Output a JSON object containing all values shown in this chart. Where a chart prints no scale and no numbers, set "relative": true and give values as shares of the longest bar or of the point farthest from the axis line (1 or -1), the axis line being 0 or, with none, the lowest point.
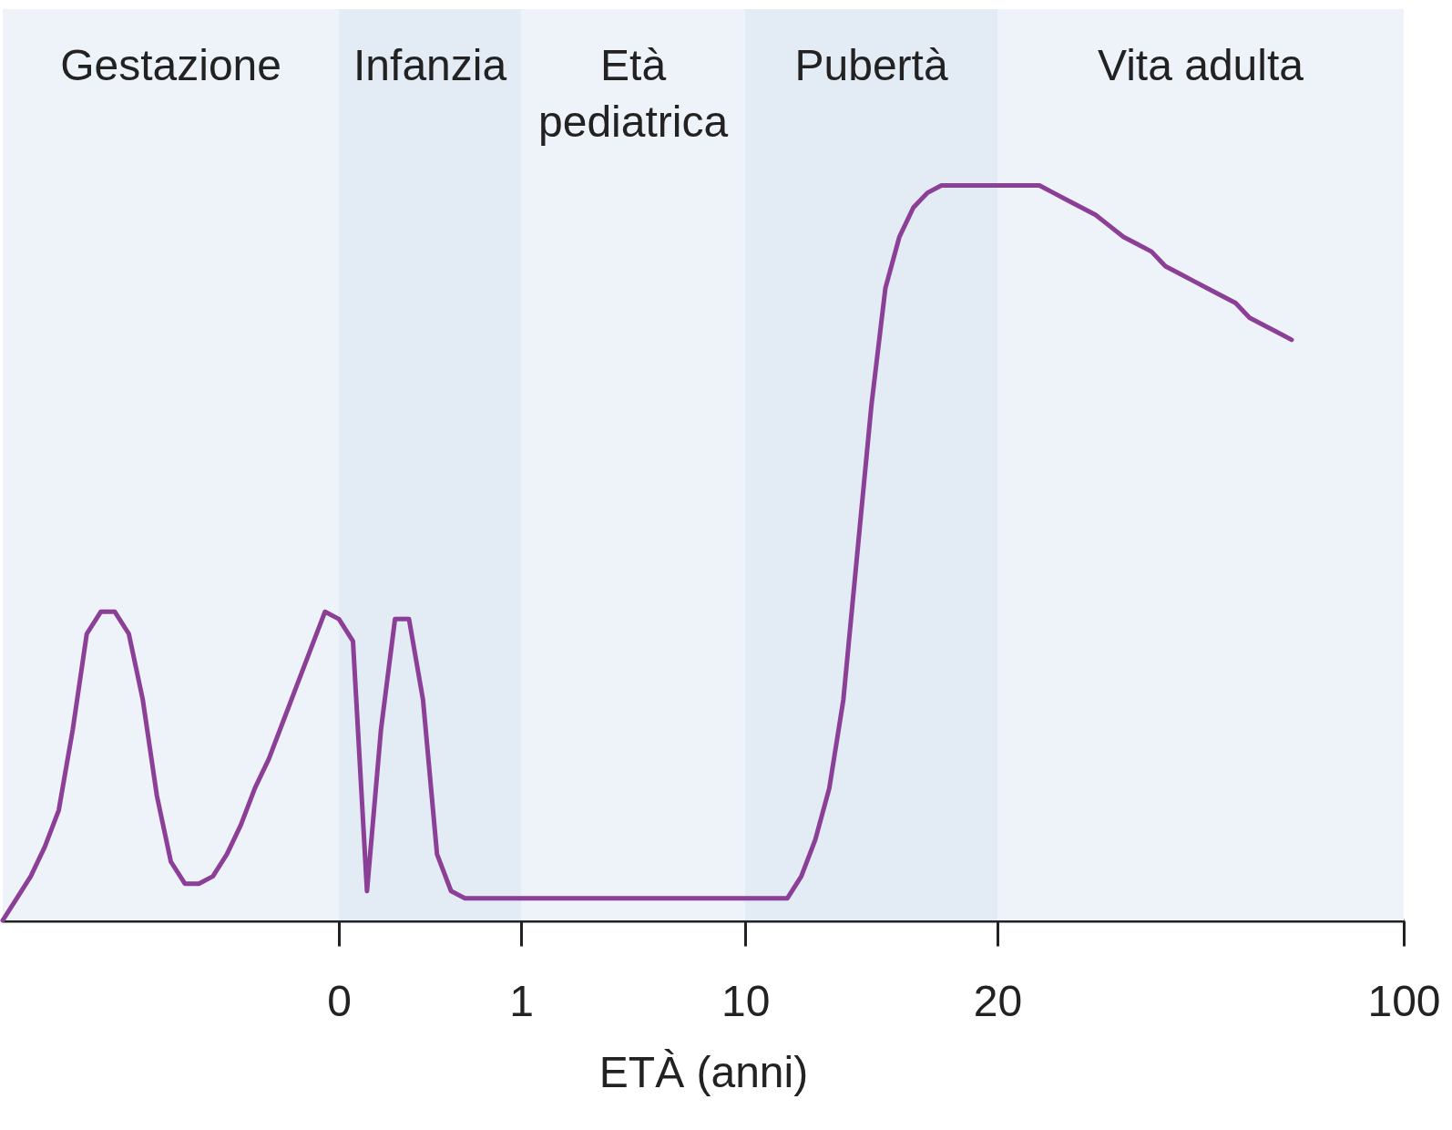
{
  "chart_data": {
    "type": "line",
    "xlabel": "ETÀ (anni)",
    "relative": true,
    "categories": [
      null,
      null,
      null,
      null,
      null,
      null,
      null,
      null,
      null,
      null,
      null,
      null,
      null,
      null,
      null,
      null,
      null,
      null,
      null,
      null,
      null,
      null,
      null,
      null,
      "0",
      null,
      null,
      null,
      null,
      null,
      null,
      null,
      null,
      null,
      null,
      null,
      null,
      "1",
      null,
      null,
      null,
      null,
      null,
      null,
      null,
      null,
      null,
      null,
      null,
      null,
      null,
      null,
      null,
      "10",
      null,
      null,
      null,
      null,
      null,
      null,
      null,
      null,
      null,
      null,
      null,
      null,
      null,
      null,
      null,
      null,
      null,
      "20",
      null,
      null,
      null,
      null,
      null,
      null,
      null,
      null,
      null,
      null,
      null,
      null,
      null,
      null,
      null,
      null,
      null,
      null,
      null,
      null,
      null,
      null,
      null,
      null,
      null,
      null,
      null,
      null,
      "100"
    ],
    "bands": [
      {
        "axis": "x",
        "from": "0",
        "to": "1",
        "label": "Infanzia",
        "color": "#e3ebf5"
      },
      {
        "axis": "x",
        "from": "10",
        "to": "20",
        "label": "Pubertà",
        "color": "#e3ebf5"
      }
    ],
    "annotations": [
      "Gestazione",
      "Età\npediatrica",
      "Vita adulta"
    ],
    "series": [
      {
        "color": "#8b3f96",
        "values": [
          0,
          0.03,
          0.06,
          0.1,
          0.15,
          0.26,
          0.39,
          0.42,
          0.42,
          0.39,
          0.3,
          0.17,
          0.08,
          0.05,
          0.05,
          0.06,
          0.09,
          0.13,
          0.18,
          0.22,
          0.27,
          0.32,
          0.37,
          0.42,
          0.41,
          0.38,
          0.04,
          0.26,
          0.41,
          0.41,
          0.3,
          0.09,
          0.04,
          0.03,
          0.03,
          0.03,
          0.03,
          0.03,
          0.03,
          0.03,
          0.03,
          0.03,
          0.03,
          0.03,
          0.03,
          0.03,
          0.03,
          0.03,
          0.03,
          0.03,
          0.03,
          0.03,
          0.03,
          0.03,
          0.03,
          0.03,
          0.03,
          0.06,
          0.11,
          0.18,
          0.3,
          0.5,
          0.7,
          0.86,
          0.93,
          0.97,
          0.99,
          1,
          1,
          1,
          1,
          1,
          1,
          1,
          1,
          0.99,
          0.98,
          0.97,
          0.96,
          0.945,
          0.93,
          0.92,
          0.91,
          0.89,
          0.88,
          0.87,
          0.86,
          0.85,
          0.84,
          0.82,
          0.81,
          0.8,
          0.79,
          null,
          null,
          null,
          null,
          null,
          null,
          null,
          null
        ]
      }
    ]
  }
}
